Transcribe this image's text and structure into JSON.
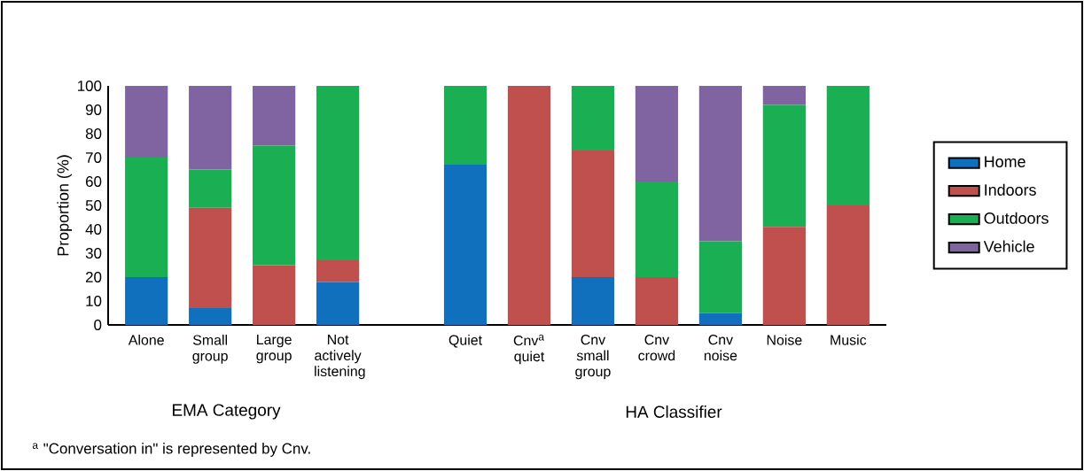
{
  "chart_data": {
    "type": "bar",
    "stacked": true,
    "categories": [
      "Alone",
      "Small group",
      "Large group",
      "Not actively listening",
      null,
      "Quiet",
      "Cnv$^{a}$ quiet",
      "Cnv small group",
      "Cnv crowd",
      "Cnv noise",
      "Noise",
      "Music"
    ],
    "series": [
      {
        "name": "Home",
        "color": "#1170be",
        "values": [
          20,
          7,
          0,
          18,
          null,
          67,
          0,
          20,
          0,
          5,
          0,
          0
        ]
      },
      {
        "name": "Indoors",
        "color": "#c0504d",
        "values": [
          0,
          42,
          25,
          9,
          null,
          0,
          100,
          53,
          20,
          0,
          41,
          50
        ]
      },
      {
        "name": "Outdoors",
        "color": "#1baf54",
        "values": [
          50,
          16,
          50,
          73,
          null,
          33,
          0,
          27,
          40,
          30,
          51,
          50
        ]
      },
      {
        "name": "Vehicle",
        "color": "#8064a2",
        "values": [
          30,
          35,
          25,
          0,
          null,
          0,
          0,
          0,
          40,
          65,
          8,
          0
        ]
      }
    ],
    "ylabel": "Proportion (%)",
    "ylim": [
      0,
      100
    ],
    "yticks": [
      0,
      10,
      20,
      30,
      40,
      50,
      60,
      70,
      80,
      90,
      100
    ],
    "legend": "right",
    "annotations": [
      "EMA Category",
      "HA Classifier",
      "$^{a}$ \"Conversation in\" is represented by Cnv."
    ]
  }
}
